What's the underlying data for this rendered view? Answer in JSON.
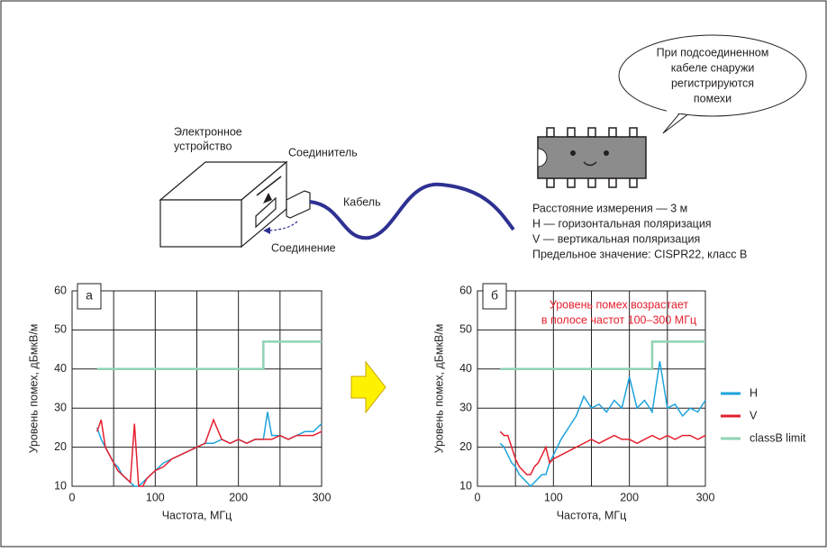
{
  "diagram": {
    "device": [
      "Электронное",
      "устройство"
    ],
    "connector": "Соединитель",
    "cable": "Кабель",
    "connection": "Соединение",
    "bubble": [
      "При подсоединенном",
      "кабеле снаружи",
      "регистрируются",
      "помехи"
    ],
    "notes": [
      "Расстояние измерения — 3 м",
      "H — горизонтальная поляризация",
      "V — вертикальная поляризация",
      "Предельное значение: CISPR22, класс B"
    ]
  },
  "chart_data": [
    {
      "type": "line",
      "panel_label": "а",
      "xlabel": "Частота, МГц",
      "ylabel": "Уровень помех, дБмкВ/м",
      "xlim": [
        0,
        300
      ],
      "ylim": [
        10,
        60
      ],
      "xticks": [
        0,
        100,
        200,
        300
      ],
      "x_minor_grid": [
        50,
        150,
        250
      ],
      "yticks": [
        10,
        20,
        30,
        40,
        50,
        60
      ],
      "grid": true,
      "series": [
        {
          "color": "#1ea3dc",
          "x": [
            30,
            35,
            40,
            45,
            50,
            55,
            60,
            65,
            70,
            75,
            80,
            85,
            90,
            95,
            100,
            110,
            120,
            130,
            140,
            150,
            160,
            170,
            180,
            190,
            200,
            210,
            220,
            230,
            235,
            240,
            250,
            260,
            270,
            280,
            290,
            300
          ],
          "values": [
            25,
            22,
            20,
            18,
            16,
            15,
            13,
            12,
            11,
            10,
            10,
            11,
            12,
            13,
            14,
            16,
            17,
            18,
            19,
            20,
            21,
            21,
            22,
            21,
            22,
            21,
            22,
            22,
            29,
            23,
            23,
            22,
            23,
            24,
            24,
            26
          ]
        },
        {
          "color": "#e5202e",
          "x": [
            30,
            35,
            40,
            45,
            50,
            55,
            60,
            65,
            70,
            75,
            80,
            85,
            90,
            95,
            100,
            110,
            120,
            130,
            140,
            150,
            160,
            170,
            180,
            190,
            200,
            210,
            220,
            230,
            240,
            250,
            260,
            270,
            280,
            290,
            300
          ],
          "values": [
            24,
            27,
            20,
            18,
            16,
            14,
            13,
            12,
            11,
            26,
            10,
            10,
            12,
            13,
            14,
            15,
            17,
            18,
            19,
            20,
            21,
            27,
            22,
            21,
            22,
            21,
            22,
            22,
            22,
            23,
            22,
            23,
            23,
            23,
            24
          ]
        },
        {
          "color": "#8fd3b4",
          "x": [
            30,
            230,
            230,
            300
          ],
          "values": [
            40,
            40,
            47,
            47
          ]
        }
      ]
    },
    {
      "type": "line",
      "panel_label": "б",
      "xlabel": "Частота, МГц",
      "ylabel": "Уровень помех, дБмкВ/м",
      "xlim": [
        0,
        300
      ],
      "ylim": [
        10,
        60
      ],
      "xticks": [
        0,
        100,
        200,
        300
      ],
      "x_minor_grid": [
        50,
        150,
        250
      ],
      "yticks": [
        10,
        20,
        30,
        40,
        50,
        60
      ],
      "grid": true,
      "legend": "right",
      "annotation": [
        "Уровень помех возрастает",
        "в полосе частот 100–300 МГц"
      ],
      "series": [
        {
          "name": "H",
          "color": "#1ea3dc",
          "x": [
            30,
            35,
            40,
            45,
            50,
            55,
            60,
            65,
            70,
            75,
            80,
            85,
            90,
            95,
            100,
            110,
            120,
            130,
            140,
            150,
            160,
            170,
            180,
            190,
            200,
            210,
            220,
            230,
            240,
            250,
            260,
            270,
            280,
            290,
            300
          ],
          "values": [
            21,
            20,
            18,
            16,
            15,
            13,
            12,
            11,
            10,
            11,
            12,
            13,
            13,
            16,
            18,
            22,
            25,
            28,
            33,
            30,
            31,
            29,
            32,
            30,
            38,
            30,
            32,
            29,
            42,
            30,
            31,
            28,
            30,
            29,
            32
          ]
        },
        {
          "name": "V",
          "color": "#e5202e",
          "x": [
            30,
            35,
            40,
            45,
            50,
            55,
            60,
            65,
            70,
            75,
            80,
            85,
            90,
            95,
            100,
            110,
            120,
            130,
            140,
            150,
            160,
            170,
            180,
            190,
            200,
            210,
            220,
            230,
            240,
            250,
            260,
            270,
            280,
            290,
            300
          ],
          "values": [
            24,
            23,
            23,
            20,
            17,
            15,
            14,
            13,
            13,
            15,
            16,
            18,
            20,
            16,
            17,
            18,
            19,
            20,
            21,
            22,
            21,
            22,
            23,
            22,
            22,
            21,
            22,
            23,
            22,
            23,
            22,
            23,
            23,
            22,
            23
          ]
        },
        {
          "name": "classB limit",
          "color": "#8fd3b4",
          "x": [
            30,
            230,
            230,
            300
          ],
          "values": [
            40,
            40,
            47,
            47
          ]
        }
      ]
    }
  ]
}
